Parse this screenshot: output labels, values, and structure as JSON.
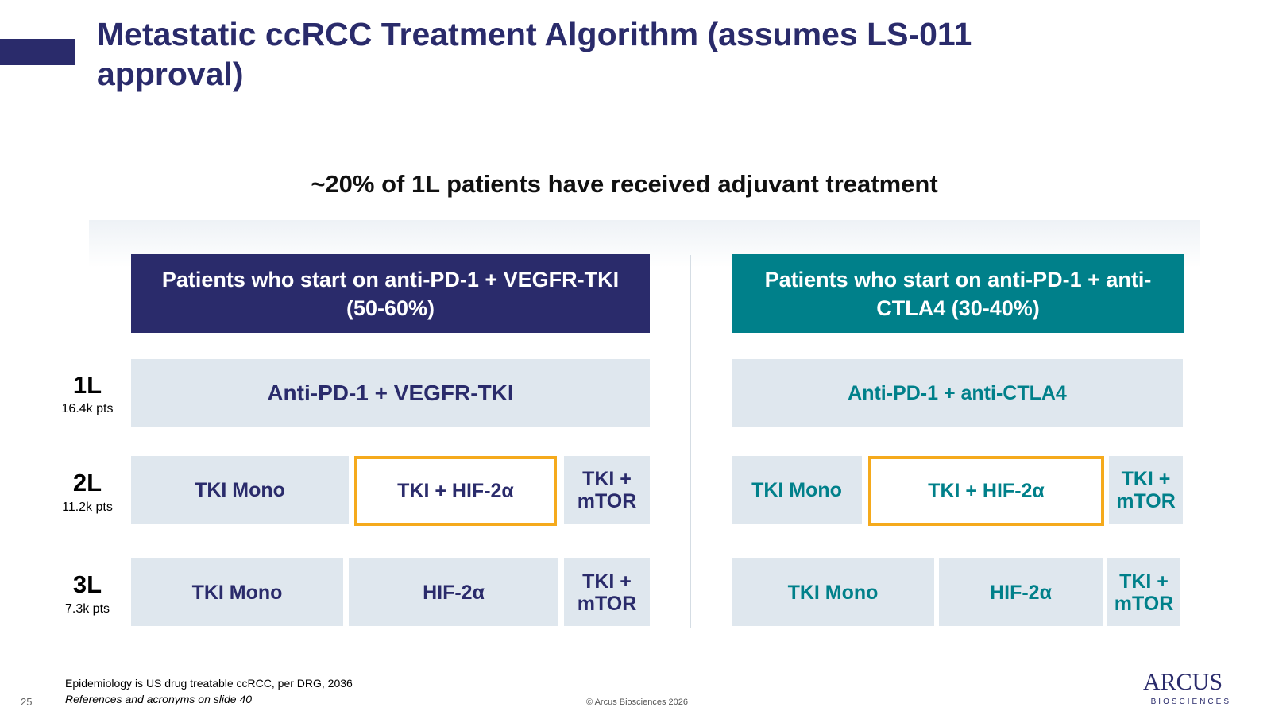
{
  "header": {
    "title": "Metastatic ccRCC Treatment Algorithm (assumes LS-011 approval)"
  },
  "subtitle": "~20% of 1L patients have received adjuvant treatment",
  "lines": [
    {
      "label": "1L",
      "patients": "16.4k pts"
    },
    {
      "label": "2L",
      "patients": "11.2k pts"
    },
    {
      "label": "3L",
      "patients": "7.3k pts"
    }
  ],
  "columns": [
    {
      "heading": "Patients who start on anti-PD-1 + VEGFR-TKI (50-60%)",
      "rows": [
        [
          "Anti-PD-1 + VEGFR-TKI"
        ],
        [
          "TKI Mono",
          "TKI + HIF-2α",
          "TKI + mTOR"
        ],
        [
          "TKI Mono",
          "HIF-2α",
          "TKI + mTOR"
        ]
      ]
    },
    {
      "heading": "Patients who start on anti-PD-1 + anti-CTLA4 (30-40%)",
      "rows": [
        [
          "Anti-PD-1 + anti-CTLA4"
        ],
        [
          "TKI Mono",
          "TKI + HIF-2α",
          "TKI + mTOR"
        ],
        [
          "TKI Mono",
          "HIF-2α",
          "TKI + mTOR"
        ]
      ]
    }
  ],
  "footer": {
    "page_number": "25",
    "notes": [
      "Epidemiology is US drug treatable ccRCC, per DRG, 2036",
      "References and acronyms on slide 40"
    ],
    "copyright": "© Arcus Biosciences 2026",
    "logo": {
      "name": "ARCUS",
      "tagline": "BIOSCIENCES"
    }
  }
}
